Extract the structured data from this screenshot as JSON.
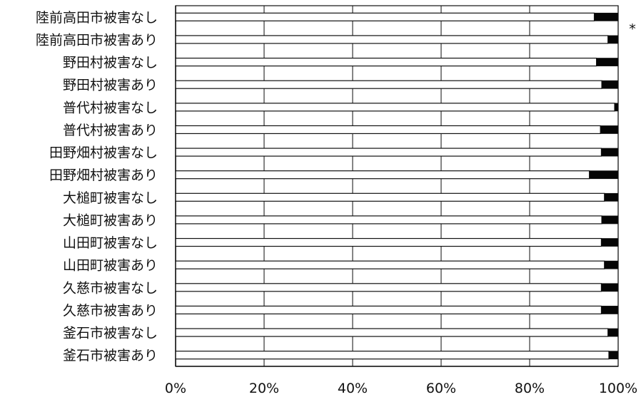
{
  "chart_data": {
    "type": "bar",
    "orientation": "horizontal",
    "stacked": true,
    "percent_scale": true,
    "categories": [
      "陸前高田市被害なし",
      "陸前高田市被害あり",
      "野田村被害なし",
      "野田村被害あり",
      "普代村被害なし",
      "普代村被害あり",
      "田野畑村被害なし",
      "田野畑村被害あり",
      "大槌町被害なし",
      "大槌町被害あり",
      "山田町被害なし",
      "山田町被害あり",
      "久慈市被害なし",
      "久慈市被害あり",
      "釜石市被害なし",
      "釜石市被害あり"
    ],
    "series": [
      {
        "values": [
          94.6,
          97.7,
          95.1,
          96.3,
          99.2,
          96.0,
          96.2,
          93.5,
          96.9,
          96.3,
          96.2,
          96.9,
          96.2,
          96.2,
          97.7,
          97.9
        ]
      },
      {
        "values": [
          5.4,
          2.3,
          4.9,
          3.7,
          0.8,
          4.0,
          3.8,
          6.5,
          3.1,
          3.7,
          3.8,
          3.1,
          3.8,
          3.8,
          2.3,
          2.1
        ]
      }
    ],
    "x_ticks": [
      "0%",
      "20%",
      "40%",
      "60%",
      "80%",
      "100%"
    ],
    "xlim": [
      0,
      100
    ],
    "annotations": [
      "*"
    ],
    "grid": true,
    "legend": "none",
    "colors": {
      "series_1": "#ffffff",
      "series_2": "#050505",
      "axis": "#111111",
      "grid": "#222222",
      "text": "#111111"
    },
    "title": "",
    "xlabel": "",
    "ylabel": ""
  }
}
